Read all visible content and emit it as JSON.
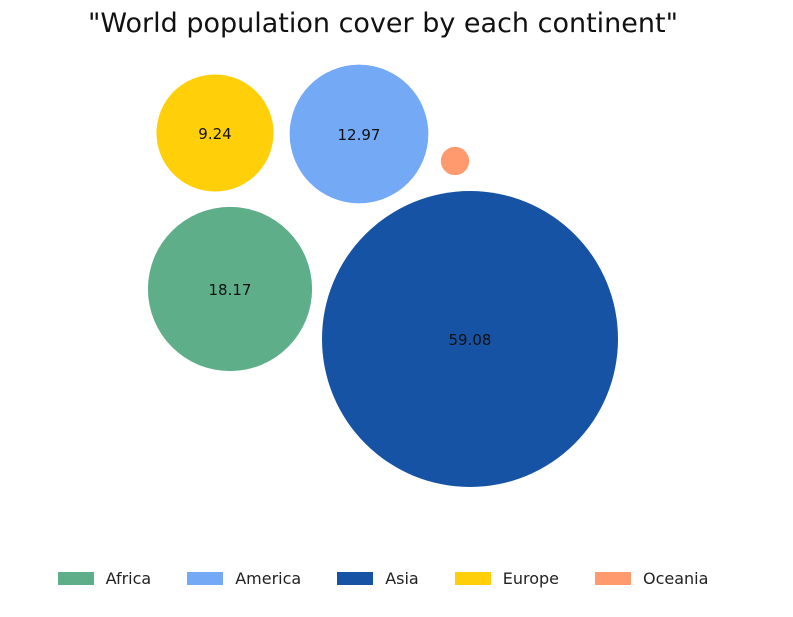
{
  "chart_data": {
    "type": "bubble",
    "title": "\"World population cover by each continent\"",
    "series": [
      {
        "name": "Africa",
        "value": 18.17,
        "color": "#5fae8a"
      },
      {
        "name": "America",
        "value": 12.97,
        "color": "#74a9f5"
      },
      {
        "name": "Asia",
        "value": 59.08,
        "color": "#1753a5"
      },
      {
        "name": "Europe",
        "value": 9.24,
        "color": "#ffd00a"
      },
      {
        "name": "Oceania",
        "value": 0.54,
        "color": "#ff9a6e",
        "label": ""
      }
    ],
    "legend": {
      "placement": "bottom",
      "entries": [
        "Africa",
        "America",
        "Asia",
        "Europe",
        "Oceania"
      ]
    },
    "grid": false
  }
}
